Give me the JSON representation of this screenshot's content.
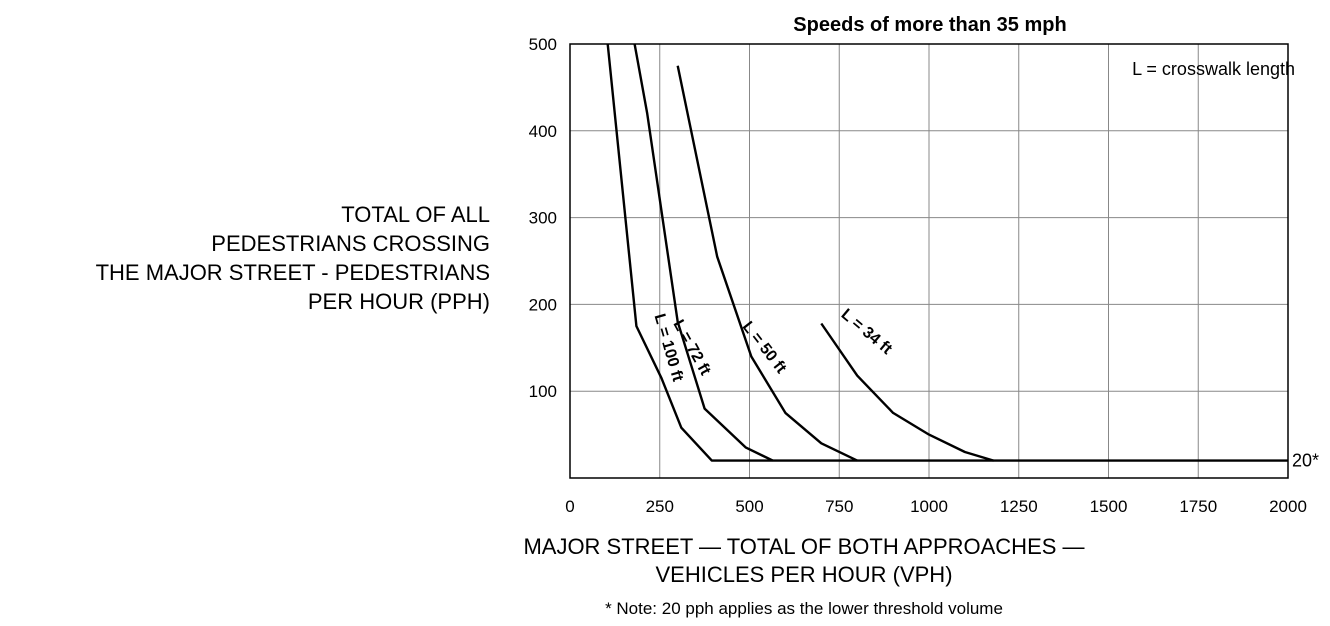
{
  "chart_data": {
    "type": "line",
    "title": "Speeds of more than 35 mph",
    "xlabel": [
      "MAJOR STREET — TOTAL OF BOTH APPROACHES —",
      "VEHICLES PER HOUR (VPH)"
    ],
    "ylabel": [
      "TOTAL OF ALL",
      "PEDESTRIANS CROSSING",
      "THE MAJOR STREET - PEDESTRIANS",
      "PER HOUR (PPH)"
    ],
    "xlim": [
      0,
      2000
    ],
    "ylim": [
      0,
      500
    ],
    "x_ticks": [
      0,
      250,
      500,
      750,
      1000,
      1250,
      1500,
      1750,
      2000
    ],
    "y_ticks": [
      100,
      200,
      300,
      400,
      500
    ],
    "grid": true,
    "annotation": "L = crosswalk length",
    "threshold_label": "20*",
    "note": "* Note: 20 pph applies as the lower threshold volume",
    "series": [
      {
        "name": "L = 100 ft",
        "x": [
          105,
          185,
          255,
          310,
          395,
          2000
        ],
        "y": [
          500,
          175,
          115,
          58,
          20,
          20
        ]
      },
      {
        "name": "L = 72 ft",
        "x": [
          180,
          215,
          300,
          375,
          490,
          565
        ],
        "y": [
          500,
          420,
          180,
          80,
          35,
          20
        ]
      },
      {
        "name": "L = 50 ft",
        "x": [
          300,
          410,
          505,
          600,
          700,
          800
        ],
        "y": [
          475,
          255,
          140,
          75,
          40,
          20
        ]
      },
      {
        "name": "L = 34 ft",
        "x": [
          700,
          800,
          900,
          1000,
          1100,
          1180
        ],
        "y": [
          178,
          118,
          75,
          50,
          30,
          20
        ]
      }
    ]
  }
}
